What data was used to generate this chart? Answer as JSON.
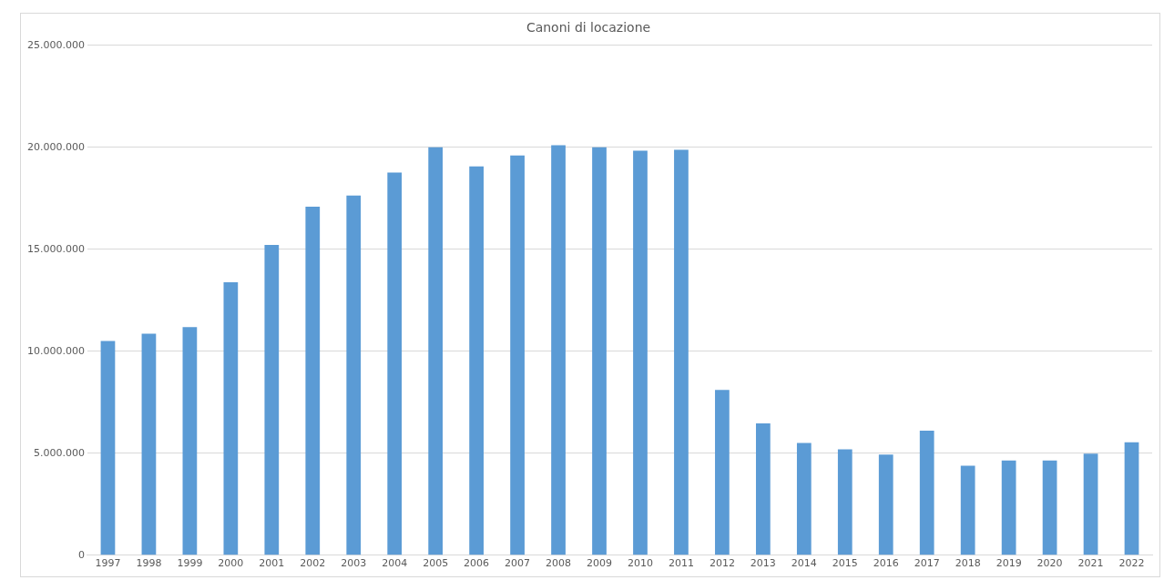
{
  "chart_data": {
    "type": "bar",
    "title": "Canoni di locazione",
    "categories": [
      "1997",
      "1998",
      "1999",
      "2000",
      "2001",
      "2002",
      "2003",
      "2004",
      "2005",
      "2006",
      "2007",
      "2008",
      "2009",
      "2010",
      "2011",
      "2012",
      "2013",
      "2014",
      "2015",
      "2016",
      "2017",
      "2018",
      "2019",
      "2020",
      "2021",
      "2022"
    ],
    "values": [
      10500000,
      10860000,
      11180000,
      13380000,
      15210000,
      17090000,
      17640000,
      18760000,
      20000000,
      19060000,
      19600000,
      20100000,
      20000000,
      19840000,
      19880000,
      8100000,
      6460000,
      5510000,
      5190000,
      4930000,
      6110000,
      4390000,
      4650000,
      4650000,
      4980000,
      5540000
    ],
    "color": "#5b9bd5",
    "ylim": [
      0,
      25000000
    ],
    "yticks": [
      {
        "value": 0,
        "label": "0"
      },
      {
        "value": 5000000,
        "label": "5.000.000"
      },
      {
        "value": 10000000,
        "label": "10.000.000"
      },
      {
        "value": 15000000,
        "label": "15.000.000"
      },
      {
        "value": 20000000,
        "label": "20.000.000"
      },
      {
        "value": 25000000,
        "label": "25.000.000"
      }
    ],
    "grid": "y"
  }
}
